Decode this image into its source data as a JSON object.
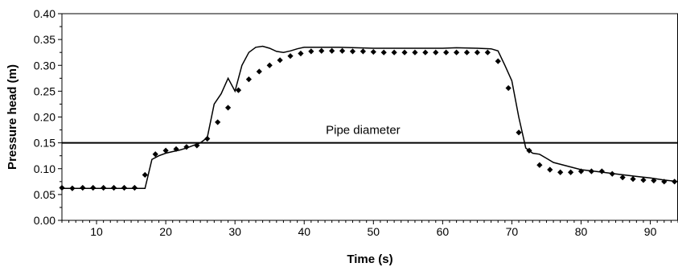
{
  "chart_data": {
    "type": "line",
    "xlabel": "Time (s)",
    "ylabel": "Pressure head (m)",
    "xlim": [
      5,
      94
    ],
    "ylim": [
      0,
      0.4
    ],
    "x_ticks": [
      10,
      20,
      30,
      40,
      50,
      60,
      70,
      80,
      90
    ],
    "x_tick_labels": [
      "10",
      "20",
      "30",
      "40",
      "50",
      "60",
      "70",
      "80",
      "90"
    ],
    "y_ticks": [
      0,
      0.05,
      0.1,
      0.15,
      0.2,
      0.25,
      0.3,
      0.35,
      0.4
    ],
    "y_tick_labels": [
      "0.00",
      "0.05",
      "0.10",
      "0.15",
      "0.20",
      "0.25",
      "0.30",
      "0.35",
      "0.40"
    ],
    "grid": false,
    "legend": "none",
    "reference_line": {
      "label": "Pipe diameter",
      "y": 0.15,
      "label_x": 48.5
    },
    "series": [
      {
        "style": "line",
        "x": [
          5,
          17,
          18,
          19,
          20,
          21,
          22,
          23,
          24,
          25,
          26,
          27,
          28,
          29,
          30,
          31,
          32,
          33,
          34,
          35,
          36,
          37,
          38,
          39,
          40,
          42,
          45,
          50,
          55,
          60,
          62,
          65,
          67,
          68,
          69,
          70,
          71,
          72,
          73,
          74,
          75,
          76,
          78,
          80,
          82,
          85,
          88,
          90,
          92,
          94
        ],
        "y": [
          0.062,
          0.062,
          0.118,
          0.125,
          0.13,
          0.133,
          0.136,
          0.14,
          0.145,
          0.15,
          0.16,
          0.225,
          0.245,
          0.275,
          0.25,
          0.3,
          0.325,
          0.335,
          0.337,
          0.333,
          0.327,
          0.325,
          0.328,
          0.332,
          0.335,
          0.335,
          0.335,
          0.333,
          0.333,
          0.333,
          0.334,
          0.333,
          0.332,
          0.328,
          0.3,
          0.27,
          0.2,
          0.14,
          0.13,
          0.128,
          0.12,
          0.112,
          0.105,
          0.098,
          0.095,
          0.09,
          0.085,
          0.082,
          0.078,
          0.075
        ]
      },
      {
        "style": "markers",
        "x": [
          5,
          6.5,
          8,
          9.5,
          11,
          12.5,
          14,
          15.5,
          17,
          18.5,
          20,
          21.5,
          23,
          24.5,
          26,
          27.5,
          29,
          30.5,
          32,
          33.5,
          35,
          36.5,
          38,
          39.5,
          41,
          42.5,
          44,
          45.5,
          47,
          48.5,
          50,
          51.5,
          53,
          54.5,
          56,
          57.5,
          59,
          60.5,
          62,
          63.5,
          65,
          66.5,
          68,
          69.5,
          71,
          72.5,
          74,
          75.5,
          77,
          78.5,
          80,
          81.5,
          83,
          84.5,
          86,
          87.5,
          89,
          90.5,
          92,
          93.5
        ],
        "y": [
          0.063,
          0.062,
          0.063,
          0.063,
          0.063,
          0.063,
          0.063,
          0.063,
          0.088,
          0.128,
          0.135,
          0.138,
          0.142,
          0.145,
          0.158,
          0.19,
          0.218,
          0.252,
          0.273,
          0.288,
          0.3,
          0.31,
          0.318,
          0.323,
          0.327,
          0.328,
          0.328,
          0.328,
          0.327,
          0.327,
          0.326,
          0.325,
          0.325,
          0.325,
          0.325,
          0.325,
          0.325,
          0.325,
          0.325,
          0.325,
          0.325,
          0.325,
          0.308,
          0.256,
          0.17,
          0.135,
          0.107,
          0.098,
          0.093,
          0.093,
          0.095,
          0.095,
          0.095,
          0.09,
          0.083,
          0.08,
          0.078,
          0.077,
          0.075,
          0.075
        ]
      }
    ]
  }
}
